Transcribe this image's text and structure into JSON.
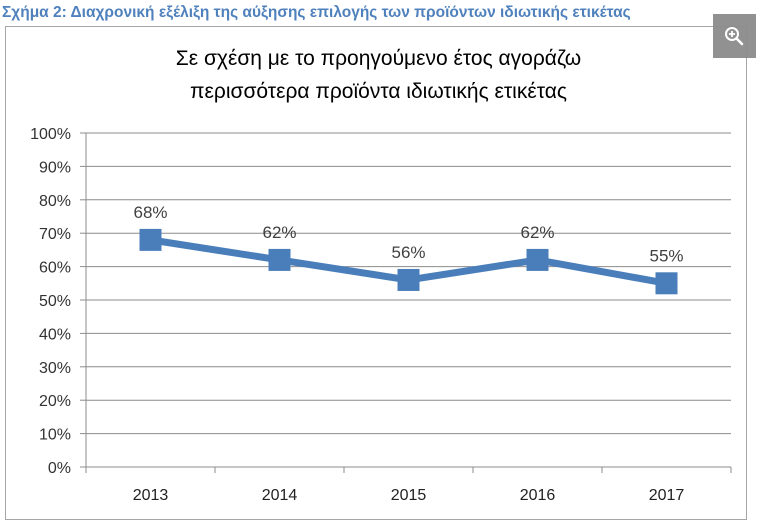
{
  "caption": "Σχήμα 2: Διαχρονική εξέλιξη της αύξησης επιλογής των προϊόντων ιδιωτικής ετικέτας",
  "zoom_button": {
    "icon": "zoom-in-icon"
  },
  "colors": {
    "line": "#4a7ebb",
    "caption": "#4f81bd",
    "grid": "#8c8c8c"
  },
  "chart_data": {
    "type": "line",
    "title": [
      "Σε σχέση με το προηγούμενο έτος αγοράζω",
      "περισσότερα προϊόντα ιδιωτικής ετικέτας"
    ],
    "categories": [
      "2013",
      "2014",
      "2015",
      "2016",
      "2017"
    ],
    "series": [
      {
        "values": [
          68,
          62,
          56,
          62,
          55
        ],
        "labels": [
          "68%",
          "62%",
          "56%",
          "62%",
          "55%"
        ]
      }
    ],
    "y_ticks": [
      "0%",
      "10%",
      "20%",
      "30%",
      "40%",
      "50%",
      "60%",
      "70%",
      "80%",
      "90%",
      "100%"
    ],
    "ylim": [
      0,
      100
    ],
    "grid": true,
    "legend": "none"
  }
}
